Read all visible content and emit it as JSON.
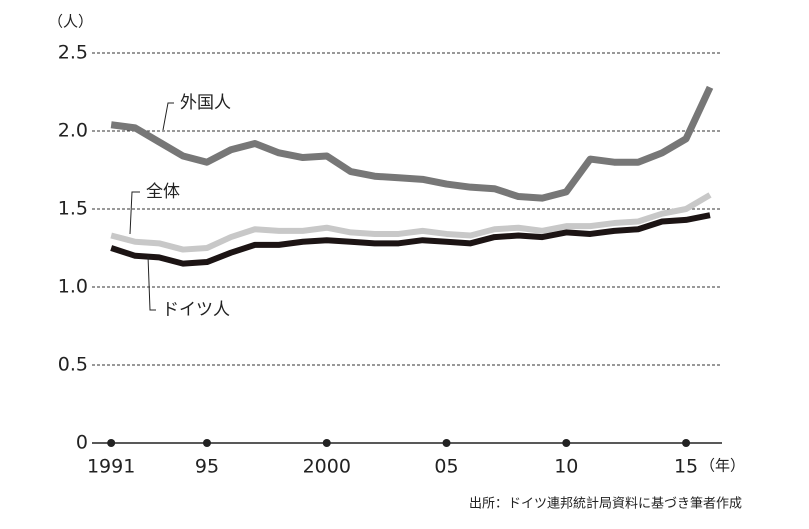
{
  "chart_data": {
    "type": "line",
    "y_unit": "（人）",
    "x_unit": "（年）",
    "source": "出所：ドイツ連邦統計局資料に基づき筆者作成",
    "x": [
      1991,
      1992,
      1993,
      1994,
      1995,
      1996,
      1997,
      1998,
      1999,
      2000,
      2001,
      2002,
      2003,
      2004,
      2005,
      2006,
      2007,
      2008,
      2009,
      2010,
      2011,
      2012,
      2013,
      2014,
      2015,
      2016
    ],
    "series": [
      {
        "name": "外国人",
        "color": "#777777",
        "values": [
          2.04,
          2.02,
          1.93,
          1.84,
          1.8,
          1.88,
          1.92,
          1.86,
          1.83,
          1.84,
          1.74,
          1.71,
          1.7,
          1.69,
          1.66,
          1.64,
          1.63,
          1.58,
          1.57,
          1.61,
          1.82,
          1.8,
          1.8,
          1.86,
          1.95,
          2.28
        ]
      },
      {
        "name": "全体",
        "color": "#c8c8c8",
        "values": [
          1.33,
          1.29,
          1.28,
          1.24,
          1.25,
          1.32,
          1.37,
          1.36,
          1.36,
          1.38,
          1.35,
          1.34,
          1.34,
          1.36,
          1.34,
          1.33,
          1.37,
          1.38,
          1.36,
          1.39,
          1.39,
          1.41,
          1.42,
          1.47,
          1.5,
          1.59
        ]
      },
      {
        "name": "ドイツ人",
        "color": "#1c1414",
        "values": [
          1.25,
          1.2,
          1.19,
          1.15,
          1.16,
          1.22,
          1.27,
          1.27,
          1.29,
          1.3,
          1.29,
          1.28,
          1.28,
          1.3,
          1.29,
          1.28,
          1.32,
          1.33,
          1.32,
          1.35,
          1.34,
          1.36,
          1.37,
          1.42,
          1.43,
          1.46
        ]
      }
    ],
    "xlim": [
      1990.2,
      2016.5
    ],
    "xticks": [
      1991,
      {
        "value": 1995,
        "label": "95"
      },
      2000,
      {
        "value": 2005,
        "label": "05"
      },
      {
        "value": 2010,
        "label": "10"
      },
      {
        "value": 2015,
        "label": "15"
      }
    ],
    "ylim": [
      0,
      2.5
    ],
    "yticks": [
      0,
      0.5,
      {
        "value": 1,
        "label": "1.0"
      },
      1.5,
      {
        "value": 2,
        "label": "2.0"
      },
      2.5
    ],
    "grid": true
  }
}
